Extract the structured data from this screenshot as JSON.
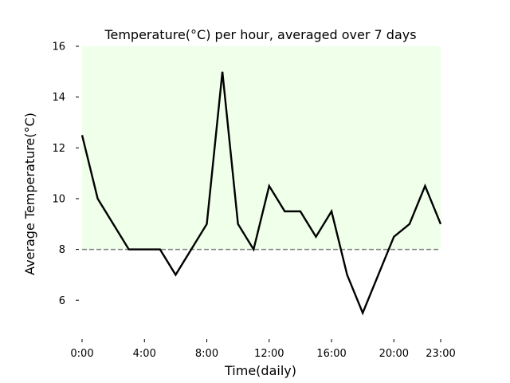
{
  "chart_data": {
    "type": "line",
    "title": "Temperature(°C) per hour, averaged over 7 days",
    "xlabel": "Time(daily)",
    "ylabel": "Average Temperature(°C)",
    "x": [
      0,
      1,
      2,
      3,
      4,
      5,
      6,
      7,
      8,
      9,
      10,
      11,
      12,
      13,
      14,
      15,
      16,
      17,
      18,
      19,
      20,
      21,
      22,
      23
    ],
    "series": [
      {
        "values": [
          12.5,
          10,
          9,
          8,
          8,
          8,
          7,
          8,
          9,
          15,
          9,
          8,
          10.5,
          9.5,
          9.5,
          8.5,
          9.5,
          7,
          5.5,
          7,
          8.5,
          9,
          10.5,
          9
        ],
        "color": "#000000"
      }
    ],
    "xticks": [
      0,
      4,
      8,
      12,
      16,
      20,
      23
    ],
    "xtick_labels": [
      "0:00",
      "4:00",
      "8:00",
      "12:00",
      "16:00",
      "20:00",
      "23:00"
    ],
    "yticks": [
      6,
      8,
      10,
      12,
      14,
      16
    ],
    "ytick_labels": [
      "6",
      "8",
      "10",
      "12",
      "14",
      "16"
    ],
    "xlim": [
      0,
      23
    ],
    "ylim": [
      4.5,
      16
    ],
    "shaded_band": {
      "y_from": 8,
      "y_to": 16,
      "color": "#efffea"
    },
    "reference_line": {
      "y": 8,
      "style": "dashed",
      "color": "#808080"
    },
    "grid": false
  }
}
